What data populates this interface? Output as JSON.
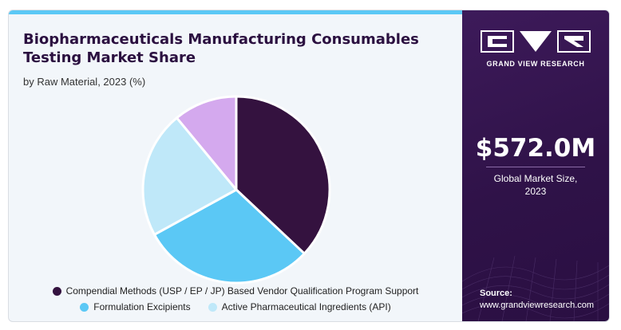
{
  "header": {
    "title": "Biopharmaceuticals Manufacturing Consumables Testing Market Share",
    "subtitle": "by Raw Material, 2023 (%)"
  },
  "chart_data": {
    "type": "pie",
    "title": "Biopharmaceuticals Manufacturing Consumables Testing Market Share",
    "subtitle": "by Raw Material, 2023 (%)",
    "slices": [
      {
        "name": "Compendial Methods (USP / EP / JP) Based Vendor Qualification Program Support",
        "value": 37,
        "color": "#34123f"
      },
      {
        "name": "Formulation Excipients",
        "value": 30,
        "color": "#5bc8f5"
      },
      {
        "name": "Active Pharmaceutical Ingredients (API)",
        "value": 22,
        "color": "#bfe8f9"
      },
      {
        "name": "",
        "value": 11,
        "color": "#d4a9ee"
      }
    ],
    "legend_placement": "bottom"
  },
  "brand": {
    "name": "GRAND VIEW RESEARCH",
    "logo_icon": "grand-view-research-logo"
  },
  "market": {
    "value": "$572.0M",
    "label": "Global Market Size,\n2023"
  },
  "source": {
    "label": "Source:",
    "url": "www.grandviewresearch.com"
  },
  "colors": {
    "panel": "#2f1248",
    "accent": "#5bc8f5"
  }
}
